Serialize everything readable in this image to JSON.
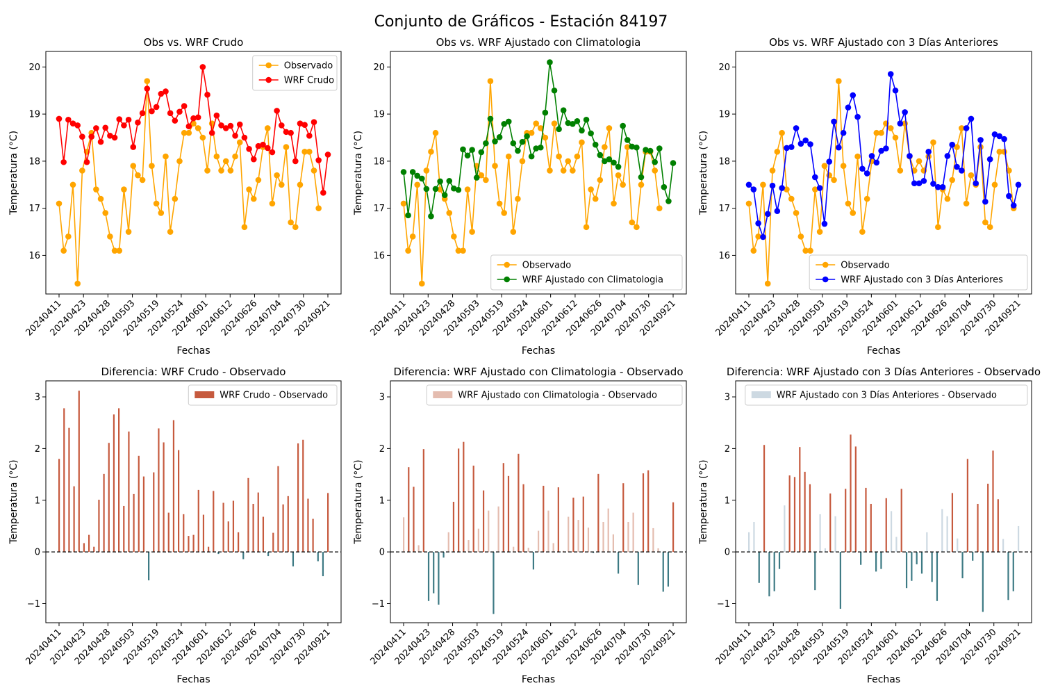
{
  "figure": {
    "suptitle": "Conjunto de Gráficos - Estación 84197"
  },
  "colors": {
    "observed": "#FFA500",
    "wrf_raw": "#FF0000",
    "wrf_clim": "#008000",
    "wrf_prev3": "#0000FF",
    "diff_raw": "#C65A3E",
    "diff_clim": "#E4BCAF",
    "diff_prev3": "#CDD9E2",
    "neg_bar": "#3D7A84",
    "zero_line": "#000000"
  },
  "chart_data": [
    {
      "type": "line",
      "title": "Obs vs. WRF Crudo",
      "xlabel": "Fechas",
      "ylabel": "Temperatura (°C)",
      "ylim": [
        15.18,
        20.33
      ],
      "yticks": [
        16,
        17,
        18,
        19,
        20
      ],
      "xticklabels": [
        "20240411",
        "20240423",
        "20240428",
        "20240503",
        "20240519",
        "20240524",
        "20240601",
        "20240612",
        "20240626",
        "20240704",
        "20240730",
        "20240921"
      ],
      "legend_loc": "upper-right",
      "series": [
        {
          "name": "Observado",
          "color": "#FFA500",
          "values": [
            17.1,
            16.1,
            16.4,
            17.5,
            15.4,
            17.8,
            18.2,
            18.6,
            17.4,
            17.2,
            16.9,
            16.4,
            16.1,
            16.1,
            17.4,
            16.5,
            17.9,
            17.7,
            17.6,
            19.7,
            17.9,
            17.1,
            16.9,
            18.1,
            16.5,
            17.2,
            18.0,
            18.6,
            18.6,
            18.8,
            18.7,
            18.5,
            17.8,
            18.8,
            18.1,
            17.8,
            18.0,
            17.8,
            18.1,
            18.4,
            16.6,
            17.4,
            17.2,
            17.6,
            18.3,
            18.7,
            17.1,
            17.7,
            17.5,
            18.3,
            16.7,
            16.6,
            17.5,
            18.2,
            18.2,
            17.8,
            17.0
          ]
        },
        {
          "name": "WRF Crudo",
          "color": "#FF0000",
          "values": [
            18.9,
            17.98,
            18.88,
            18.8,
            18.76,
            18.52,
            17.98,
            18.52,
            18.7,
            18.41,
            18.71,
            18.54,
            18.5,
            18.89,
            18.76,
            18.88,
            18.3,
            18.82,
            19.02,
            19.54,
            19.06,
            19.15,
            19.43,
            19.48,
            19.02,
            18.86,
            19.05,
            19.17,
            18.74,
            18.91,
            18.93,
            20.0,
            19.41,
            18.6,
            18.97,
            18.76,
            18.7,
            18.75,
            18.54,
            18.78,
            18.5,
            18.26,
            18.04,
            18.32,
            18.35,
            18.28,
            18.19,
            19.07,
            18.76,
            18.62,
            18.6,
            18.0,
            18.8,
            18.77,
            18.54,
            18.83,
            18.02,
            17.33,
            18.14
          ]
        }
      ]
    },
    {
      "type": "line",
      "title": "Obs vs. WRF Ajustado con Climatologia",
      "xlabel": "Fechas",
      "ylabel": "Temperatura (°C)",
      "ylim": [
        15.18,
        20.33
      ],
      "yticks": [
        16,
        17,
        18,
        19,
        20
      ],
      "xticklabels": [
        "20240411",
        "20240423",
        "20240428",
        "20240503",
        "20240519",
        "20240524",
        "20240601",
        "20240612",
        "20240626",
        "20240704",
        "20240730",
        "20240921"
      ],
      "legend_loc": "lower-right",
      "series": [
        {
          "name": "Observado",
          "color": "#FFA500",
          "values": [
            17.1,
            16.1,
            16.4,
            17.5,
            15.4,
            17.8,
            18.2,
            18.6,
            17.4,
            17.2,
            16.9,
            16.4,
            16.1,
            16.1,
            17.4,
            16.5,
            17.9,
            17.7,
            17.6,
            19.7,
            17.9,
            17.1,
            16.9,
            18.1,
            16.5,
            17.2,
            18.0,
            18.6,
            18.6,
            18.8,
            18.7,
            18.5,
            17.8,
            18.8,
            18.1,
            17.8,
            18.0,
            17.8,
            18.1,
            18.4,
            16.6,
            17.4,
            17.2,
            17.6,
            18.3,
            18.7,
            17.1,
            17.7,
            17.5,
            18.3,
            16.7,
            16.6,
            17.5,
            18.2,
            18.2,
            17.8,
            17.0
          ]
        },
        {
          "name": "WRF Ajustado con Climatologia",
          "color": "#008000",
          "values": [
            17.77,
            16.85,
            17.77,
            17.69,
            17.63,
            17.41,
            16.83,
            17.41,
            17.57,
            17.28,
            17.58,
            17.42,
            17.39,
            18.25,
            18.12,
            18.24,
            17.65,
            18.19,
            18.38,
            18.9,
            18.42,
            18.51,
            18.79,
            18.84,
            18.38,
            18.22,
            18.41,
            18.53,
            18.1,
            18.27,
            18.29,
            19.03,
            20.1,
            19.5,
            18.68,
            19.08,
            18.81,
            18.79,
            18.85,
            18.65,
            18.88,
            18.59,
            18.35,
            18.13,
            18.0,
            18.04,
            17.97,
            17.88,
            18.75,
            18.45,
            18.31,
            18.29,
            17.66,
            18.24,
            18.22,
            17.98,
            18.27,
            17.45,
            17.15,
            17.96
          ]
        }
      ]
    },
    {
      "type": "line",
      "title": "Obs vs. WRF Ajustado con 3 Días Anteriores",
      "xlabel": "Fechas",
      "ylabel": "Temperatura (°C)",
      "ylim": [
        15.18,
        20.33
      ],
      "yticks": [
        16,
        17,
        18,
        19,
        20
      ],
      "xticklabels": [
        "20240411",
        "20240423",
        "20240428",
        "20240503",
        "20240519",
        "20240524",
        "20240601",
        "20240612",
        "20240626",
        "20240704",
        "20240730",
        "20240921"
      ],
      "legend_loc": "lower-right",
      "series": [
        {
          "name": "Observado",
          "color": "#FFA500",
          "values": [
            17.1,
            16.1,
            16.4,
            17.5,
            15.4,
            17.8,
            18.2,
            18.6,
            17.4,
            17.2,
            16.9,
            16.4,
            16.1,
            16.1,
            17.4,
            16.5,
            17.9,
            17.7,
            17.6,
            19.7,
            17.9,
            17.1,
            16.9,
            18.1,
            16.5,
            17.2,
            18.0,
            18.6,
            18.6,
            18.8,
            18.7,
            18.5,
            17.8,
            18.8,
            18.1,
            17.8,
            18.0,
            17.8,
            18.1,
            18.4,
            16.6,
            17.4,
            17.2,
            17.6,
            18.3,
            18.7,
            17.1,
            17.7,
            17.5,
            18.3,
            16.7,
            16.6,
            17.5,
            18.2,
            18.2,
            17.8,
            17.0
          ]
        },
        {
          "name": "WRF Ajustado con 3 Días Anteriores",
          "color": "#0000FF",
          "values": [
            17.5,
            17.4,
            16.68,
            16.39,
            16.88,
            17.48,
            16.94,
            17.43,
            18.28,
            18.3,
            18.7,
            18.37,
            18.44,
            18.36,
            17.66,
            17.43,
            16.67,
            17.99,
            18.84,
            18.29,
            18.6,
            19.14,
            19.4,
            18.94,
            17.84,
            17.74,
            18.11,
            17.97,
            18.22,
            18.27,
            19.85,
            19.5,
            18.8,
            19.04,
            18.11,
            17.53,
            17.53,
            17.58,
            18.2,
            17.52,
            17.45,
            17.45,
            18.11,
            18.35,
            17.88,
            17.8,
            18.7,
            18.9,
            17.53,
            18.45,
            17.14,
            18.04,
            18.57,
            18.53,
            18.47,
            17.26,
            17.06,
            17.5
          ]
        }
      ]
    },
    {
      "type": "bar",
      "title": "Diferencia: WRF Crudo - Observado",
      "xlabel": "Fechas",
      "ylabel": "Temperatura (°C)",
      "ylim": [
        -1.37,
        3.31
      ],
      "yticks": [
        -1,
        0,
        1,
        2,
        3
      ],
      "xticklabels": [
        "20240411",
        "20240423",
        "20240428",
        "20240503",
        "20240519",
        "20240524",
        "20240601",
        "20240612",
        "20240626",
        "20240704",
        "20240730",
        "20240921"
      ],
      "legend_loc": "upper-right",
      "zero_line": true,
      "series": [
        {
          "name": "WRF Crudo - Observado",
          "color": "#C65A3E",
          "values": [
            1.8,
            2.78,
            2.4,
            1.27,
            3.12,
            0.17,
            0.33,
            0.1,
            1.01,
            1.51,
            2.11,
            2.66,
            2.78,
            0.89,
            2.33,
            1.12,
            1.86,
            1.46,
            -0.55,
            1.54,
            2.39,
            2.12,
            0.76,
            2.55,
            1.97,
            0.73,
            0.31,
            0.33,
            1.2,
            0.72,
            0.1,
            1.18,
            -0.04,
            0.95,
            0.59,
            0.99,
            0.38,
            -0.14,
            1.43,
            0.93,
            1.15,
            0.68,
            -0.08,
            0.37,
            1.66,
            0.92,
            1.08,
            -0.28,
            2.1,
            2.17,
            1.03,
            0.64,
            -0.18,
            -0.47,
            1.14
          ]
        }
      ]
    },
    {
      "type": "bar",
      "title": "Diferencia: WRF Ajustado con Climatologia - Observado",
      "xlabel": "Fechas",
      "ylabel": "Temperatura (°C)",
      "ylim": [
        -1.37,
        3.31
      ],
      "yticks": [
        -1,
        0,
        1,
        2,
        3
      ],
      "xticklabels": [
        "20240411",
        "20240423",
        "20240428",
        "20240503",
        "20240519",
        "20240524",
        "20240601",
        "20240612",
        "20240626",
        "20240704",
        "20240730",
        "20240921"
      ],
      "legend_loc": "upper-right",
      "zero_line": true,
      "series": [
        {
          "name": "WRF Ajustado con Climatologia - Observado",
          "color": "#E4BCAF",
          "values": [
            0.67,
            1.64,
            1.26,
            0.13,
            1.99,
            -0.95,
            -0.8,
            -1.02,
            -0.11,
            0.38,
            0.97,
            2.0,
            2.13,
            0.23,
            1.67,
            0.45,
            1.19,
            0.8,
            -1.2,
            0.88,
            1.72,
            1.47,
            0.1,
            1.9,
            1.31,
            0.08,
            -0.34,
            0.41,
            1.28,
            0.8,
            0.17,
            1.25,
            0.02,
            0.68,
            1.05,
            0.62,
            1.07,
            0.47,
            -0.02,
            1.51,
            0.58,
            0.84,
            0.34,
            -0.42,
            1.33,
            0.58,
            0.76,
            -0.64,
            1.52,
            1.58,
            0.46,
            0.07,
            -0.77,
            -0.67,
            0.96
          ]
        }
      ]
    },
    {
      "type": "bar",
      "title": "Diferencia: WRF Ajustado con 3 Días Anteriores - Observado",
      "xlabel": "Fechas",
      "ylabel": "Temperatura (°C)",
      "ylim": [
        -1.37,
        3.31
      ],
      "yticks": [
        -1,
        0,
        1,
        2,
        3
      ],
      "xticklabels": [
        "20240411",
        "20240423",
        "20240428",
        "20240503",
        "20240519",
        "20240524",
        "20240601",
        "20240612",
        "20240626",
        "20240704",
        "20240730",
        "20240921"
      ],
      "legend_loc": "upper-right",
      "zero_line": true,
      "series": [
        {
          "name": "WRF Ajustado con 3 Días Anteriores - Observado",
          "color": "#CDD9E2",
          "values": [
            0.38,
            0.58,
            -0.6,
            2.07,
            -0.86,
            -0.76,
            -0.33,
            0.9,
            1.48,
            1.45,
            2.03,
            1.55,
            1.31,
            -0.74,
            0.73,
            0.07,
            1.13,
            0.69,
            -1.1,
            1.22,
            2.27,
            2.04,
            -0.25,
            1.24,
            0.93,
            -0.38,
            -0.33,
            1.04,
            0.79,
            0.29,
            1.22,
            -0.7,
            -0.56,
            -0.24,
            -0.42,
            0.38,
            -0.58,
            -0.95,
            0.83,
            0.69,
            1.14,
            0.26,
            -0.51,
            1.8,
            -0.17,
            0.93,
            -1.16,
            1.32,
            1.96,
            1.02,
            0.25,
            -0.93,
            -0.76,
            0.5
          ]
        }
      ]
    }
  ]
}
